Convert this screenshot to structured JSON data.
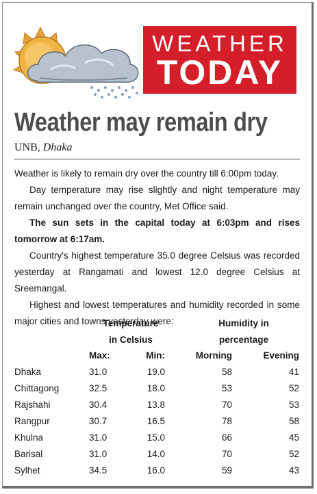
{
  "banner": {
    "line1": "WEATHER",
    "line2": "TODAY"
  },
  "headline": "Weather may remain dry",
  "byline": {
    "agency": "UNB",
    "separator": ",",
    "place": "Dhaka"
  },
  "paragraphs": [
    "Weather is likely to remain dry over the country till 6:00pm today.",
    "Day temperature may rise slightly and night temperature may remain unchanged over the country, Met Office said.",
    "The sun sets in the capital today at 6:03pm and rises tomorrow at 6:17am.",
    "Country's highest temperature 35.0 degree Celsius was recorded yesterday at Rangamati and lowest 12.0 degree Celsius at Sreemangal.",
    "Highest and lowest temperatures and humidity recorded in some major cities and towns yesterday were:"
  ],
  "table": {
    "group_headers": {
      "temperature": [
        "Temperature",
        "in Celsius"
      ],
      "humidity": [
        "Humidity in",
        "percentage"
      ]
    },
    "columns": [
      "Max:",
      "Min:",
      "Morning",
      "Evening"
    ],
    "rows": [
      {
        "city": "Dhaka",
        "max": "31.0",
        "min": "19.0",
        "morning": "58",
        "evening": "41"
      },
      {
        "city": "Chittagong",
        "max": "32.5",
        "min": "18.0",
        "morning": "53",
        "evening": "52"
      },
      {
        "city": "Rajshahi",
        "max": "30.4",
        "min": "13.8",
        "morning": "70",
        "evening": "53"
      },
      {
        "city": "Rangpur",
        "max": "30.7",
        "min": "16.5",
        "morning": "78",
        "evening": "58"
      },
      {
        "city": "Khulna",
        "max": "31.0",
        "min": "15.0",
        "morning": "66",
        "evening": "45"
      },
      {
        "city": "Barisal",
        "max": "31.0",
        "min": "14.0",
        "morning": "70",
        "evening": "52"
      },
      {
        "city": "Sylhet",
        "max": "34.5",
        "min": "16.0",
        "morning": "59",
        "evening": "43"
      }
    ]
  },
  "colors": {
    "banner": "#d41f2a",
    "headline": "#4d4d4d",
    "sun": "#e6a33a",
    "cloud": "#9aa7b6"
  }
}
